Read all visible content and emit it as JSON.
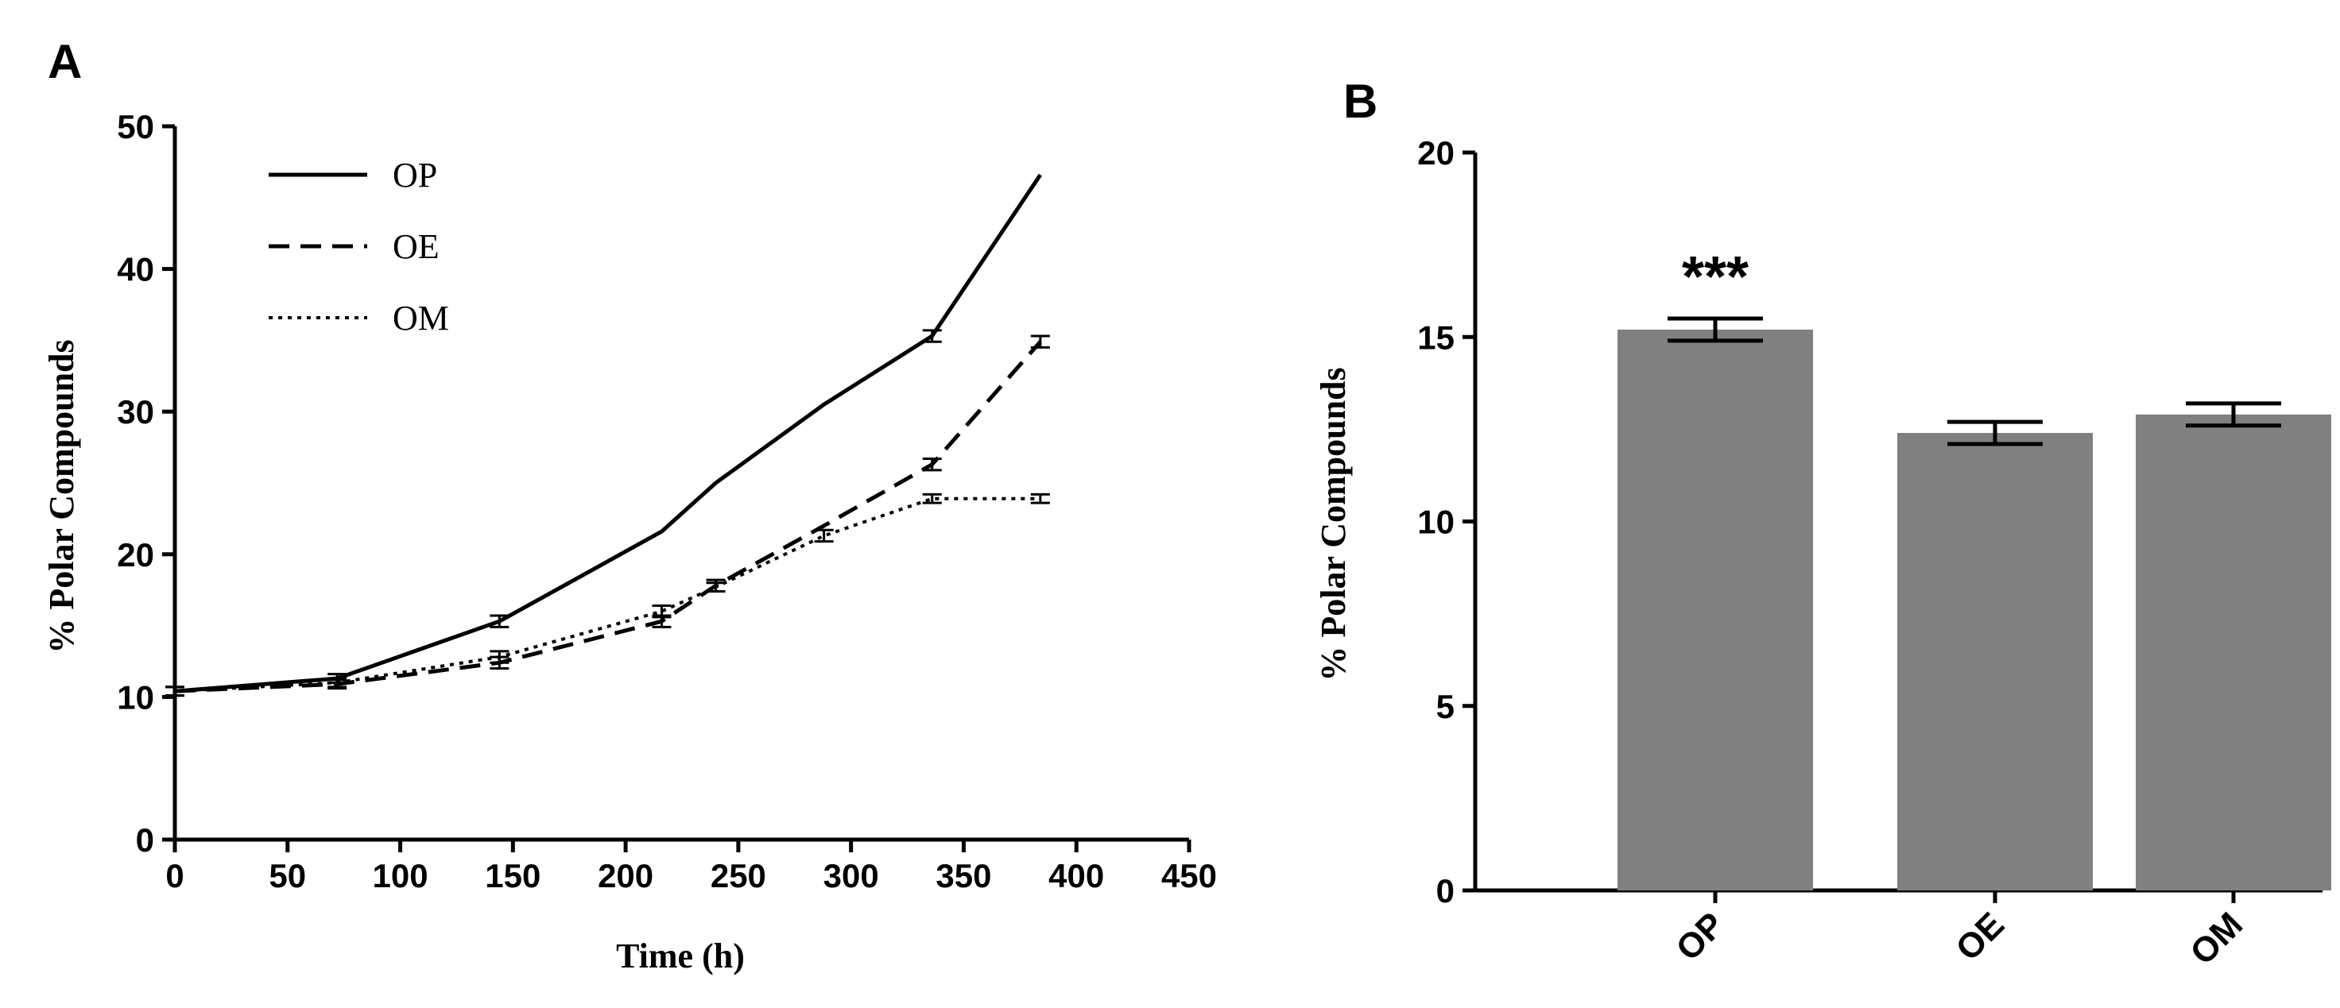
{
  "chart_data": [
    {
      "panel_label": "A",
      "type": "line",
      "title": "",
      "xlabel": "Time (h)",
      "ylabel": "% Polar Compounds",
      "xlim": [
        0,
        450
      ],
      "ylim": [
        0,
        50
      ],
      "x_ticks": [
        "0",
        "50",
        "100",
        "150",
        "200",
        "250",
        "300",
        "350",
        "400",
        "450"
      ],
      "y_ticks": [
        "0",
        "10",
        "20",
        "30",
        "40",
        "50"
      ],
      "legend_position": "top-left",
      "grid": false,
      "series": [
        {
          "name": "OP",
          "style": "solid",
          "points": [
            {
              "x": 0,
              "y": 10.4,
              "err": 0.3
            },
            {
              "x": 72,
              "y": 11.3,
              "err": 0.3
            },
            {
              "x": 144,
              "y": 15.3,
              "err": 0.4
            },
            {
              "x": 216,
              "y": 21.6,
              "err": 0
            },
            {
              "x": 240,
              "y": 25.0,
              "err": 0
            },
            {
              "x": 288,
              "y": 30.5,
              "err": 0
            },
            {
              "x": 336,
              "y": 35.3,
              "err": 0.4
            },
            {
              "x": 384,
              "y": 46.6,
              "err": 0
            }
          ]
        },
        {
          "name": "OE",
          "style": "dashed",
          "points": [
            {
              "x": 0,
              "y": 10.4,
              "err": 0.3
            },
            {
              "x": 72,
              "y": 10.9,
              "err": 0.3
            },
            {
              "x": 144,
              "y": 12.4,
              "err": 0.4
            },
            {
              "x": 216,
              "y": 15.3,
              "err": 0.4
            },
            {
              "x": 240,
              "y": 17.8,
              "err": 0.4
            },
            {
              "x": 288,
              "y": 22.0,
              "err": 0
            },
            {
              "x": 336,
              "y": 26.3,
              "err": 0.4
            },
            {
              "x": 384,
              "y": 34.9,
              "err": 0.4
            }
          ]
        },
        {
          "name": "OM",
          "style": "dotted",
          "points": [
            {
              "x": 0,
              "y": 10.4,
              "err": 0.3
            },
            {
              "x": 72,
              "y": 11.0,
              "err": 0.3
            },
            {
              "x": 144,
              "y": 12.8,
              "err": 0.4
            },
            {
              "x": 216,
              "y": 16.0,
              "err": 0.4
            },
            {
              "x": 240,
              "y": 17.7,
              "err": 0.3
            },
            {
              "x": 288,
              "y": 21.3,
              "err": 0.4
            },
            {
              "x": 336,
              "y": 23.9,
              "err": 0.3
            },
            {
              "x": 384,
              "y": 23.9,
              "err": 0.3
            }
          ]
        }
      ]
    },
    {
      "panel_label": "B",
      "type": "bar",
      "title": "",
      "xlabel": "",
      "ylabel": "% Polar Compounds",
      "ylim": [
        0,
        20
      ],
      "y_ticks": [
        "0",
        "5",
        "10",
        "15",
        "20"
      ],
      "categories": [
        "OP",
        "OE",
        "OM"
      ],
      "values": [
        15.2,
        12.4,
        12.9
      ],
      "errors": [
        0.3,
        0.3,
        0.3
      ],
      "annotations": [
        "***",
        "",
        ""
      ],
      "bar_color": "#808080",
      "grid": false
    }
  ]
}
